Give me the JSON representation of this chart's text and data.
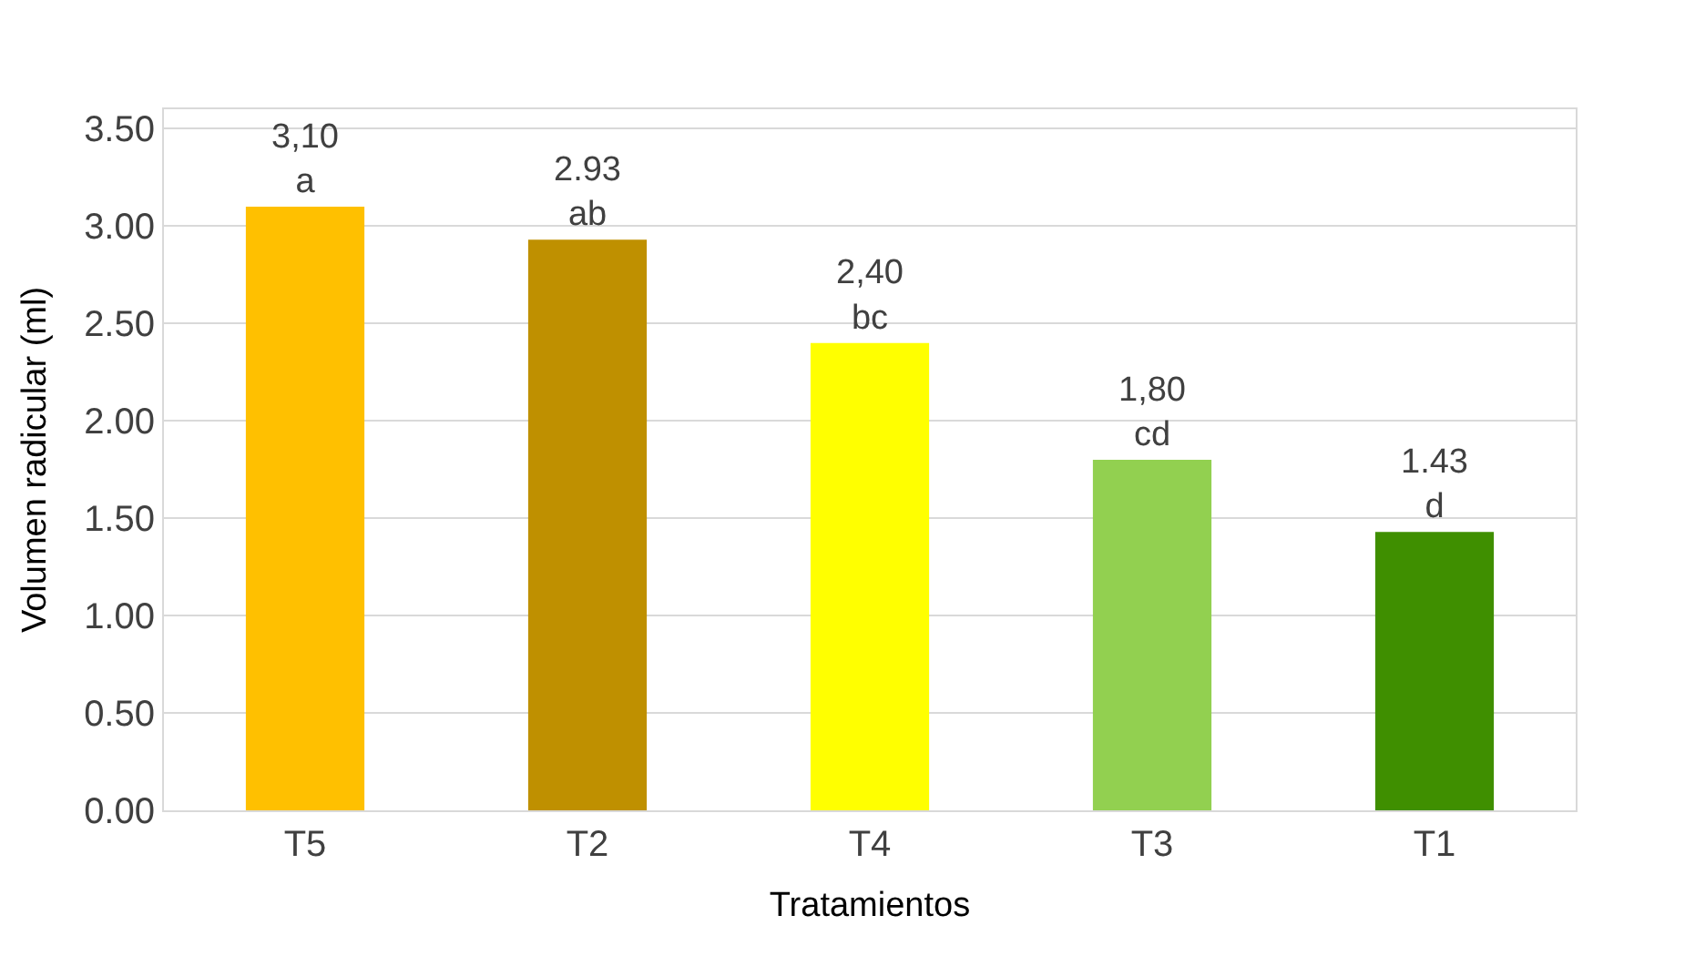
{
  "chart_data": {
    "type": "bar",
    "xlabel": "Tratamientos",
    "ylabel": "Volumen radicular (ml)",
    "categories": [
      "T5",
      "T2",
      "T4",
      "T3",
      "T1"
    ],
    "values": [
      3.1,
      2.93,
      2.4,
      1.8,
      1.43
    ],
    "value_labels": [
      "3,10\na",
      "2.93\nab",
      "2,40\nbc",
      "1,80\ncd",
      "1.43\nd"
    ],
    "colors": [
      "#ffc000",
      "#bf9000",
      "#ffff00",
      "#92d050",
      "#3f8f00"
    ],
    "ylim": [
      0,
      3.6
    ],
    "yticks": [
      {
        "value": 0,
        "label": "0.00"
      },
      {
        "value": 0.5,
        "label": "0.50"
      },
      {
        "value": 1,
        "label": "1.00"
      },
      {
        "value": 1.5,
        "label": "1.50"
      },
      {
        "value": 2,
        "label": "2.00"
      },
      {
        "value": 2.5,
        "label": "2.50"
      },
      {
        "value": 3,
        "label": "3.00"
      },
      {
        "value": 3.5,
        "label": "3.50"
      }
    ],
    "grid": "y"
  }
}
